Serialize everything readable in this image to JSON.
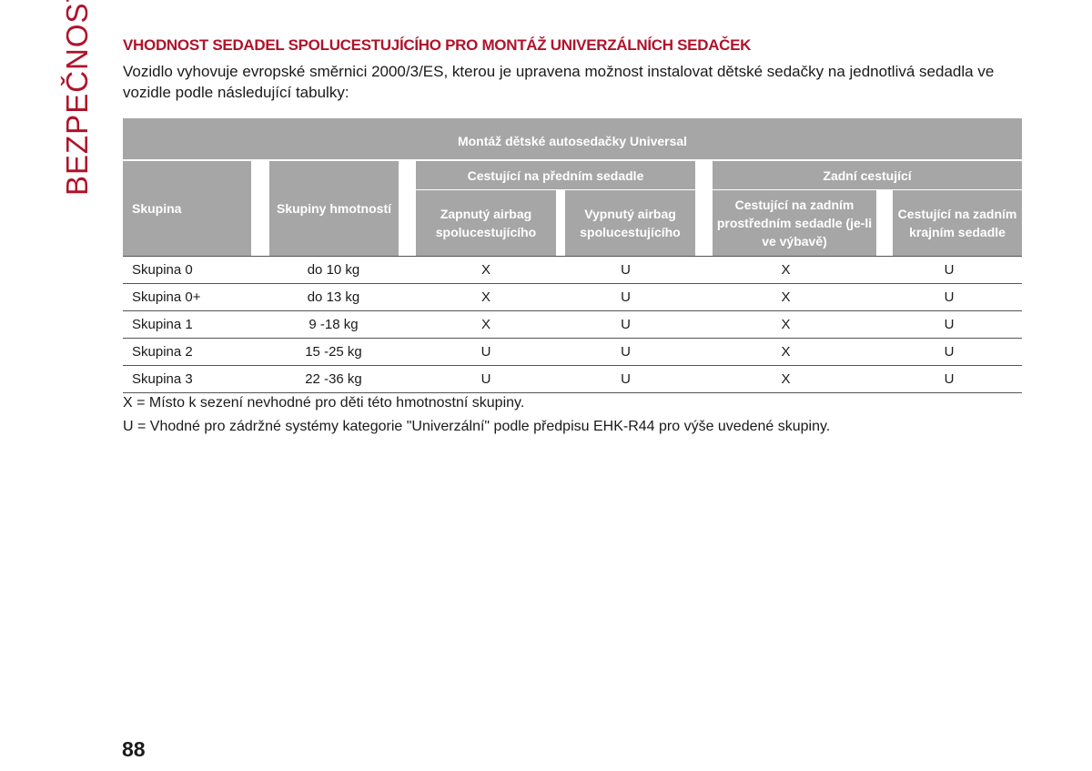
{
  "side_title": "BEZPEČNOST",
  "heading": "VHODNOST SEDADEL SPOLUCESTUJÍCÍHO PRO MONTÁŽ UNIVERZÁLNÍCH SEDAČEK",
  "intro": "Vozidlo vyhovuje evropské směrnici 2000/3/ES, kterou je upravena možnost instalovat dětské sedačky na jednotlivá sedadla ve vozidle podle následující tabulky:",
  "table": {
    "title": "Montáž dětské autosedačky Universal",
    "col_group": "Skupina",
    "col_weight": "Skupiny hmotností",
    "front_group": "Cestující na předním sedadle",
    "rear_group": "Zadní cestující",
    "col_airbag_on": "Zapnutý airbag spolucestujícího",
    "col_airbag_off": "Vypnutý airbag spolucestujícího",
    "col_rear_middle": "Cestující na zadním prostředním sedadle (je-li ve výbavě)",
    "col_rear_side": "Cestující na zadním krajním sedadle",
    "rows": [
      [
        "Skupina 0",
        "do 10 kg",
        "X",
        "U",
        "X",
        "U"
      ],
      [
        "Skupina 0+",
        "do 13 kg",
        "X",
        "U",
        "X",
        "U"
      ],
      [
        "Skupina 1",
        "9 -18 kg",
        "X",
        "U",
        "X",
        "U"
      ],
      [
        "Skupina 2",
        "15 -25 kg",
        "U",
        "U",
        "X",
        "U"
      ],
      [
        "Skupina 3",
        "22 -36 kg",
        "U",
        "U",
        "X",
        "U"
      ]
    ]
  },
  "legend": {
    "x": "X = Místo k sezení nevhodné pro děti této hmotnostní skupiny.",
    "u": "U = Vhodné pro zádržné systémy kategorie \"Univerzální\" podle předpisu EHK-R44 pro výše uvedené skupiny."
  },
  "page_number": "88",
  "colors": {
    "accent": "#b0132b",
    "header_bg": "#a6a6a6"
  }
}
